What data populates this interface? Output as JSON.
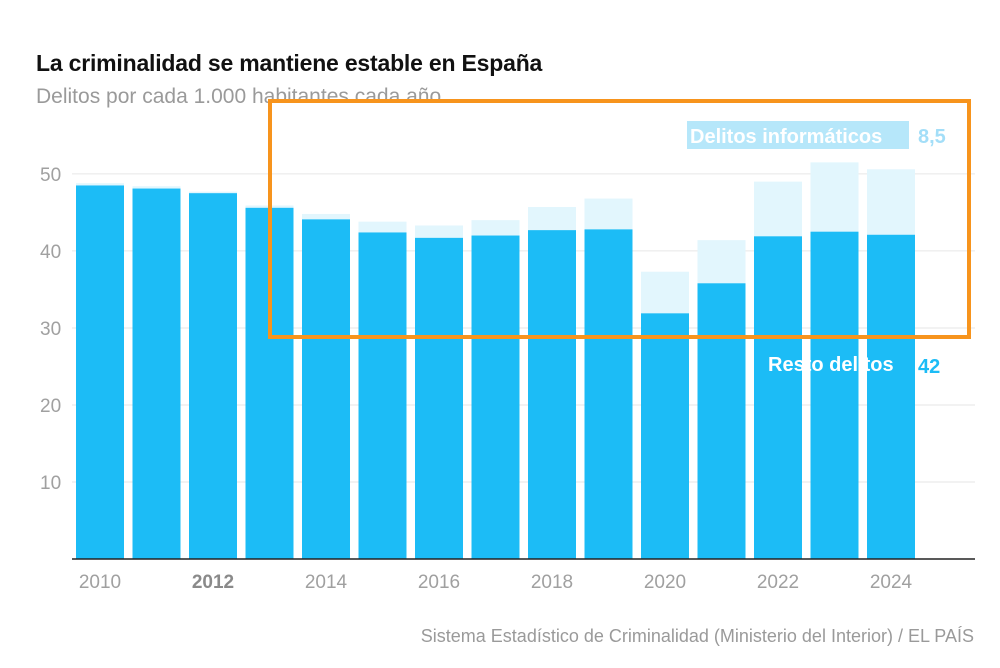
{
  "chart_data": {
    "type": "bar",
    "stacked": true,
    "title": "La criminalidad se mantiene estable en España",
    "subtitle": "Delitos por cada 1.000 habitantes cada año",
    "source": "Sistema Estadístico de Criminalidad (Ministerio del Interior) / EL PAÍS",
    "categories": [
      2010,
      2011,
      2012,
      2013,
      2014,
      2015,
      2016,
      2017,
      2018,
      2019,
      2020,
      2021,
      2022,
      2023,
      2024
    ],
    "x_tick_labels": [
      {
        "year": 2010,
        "label": "2010",
        "bold": false
      },
      {
        "year": 2012,
        "label": "2012",
        "bold": true
      },
      {
        "year": 2014,
        "label": "2014",
        "bold": false
      },
      {
        "year": 2016,
        "label": "2016",
        "bold": false
      },
      {
        "year": 2018,
        "label": "2018",
        "bold": false
      },
      {
        "year": 2020,
        "label": "2020",
        "bold": false
      },
      {
        "year": 2022,
        "label": "2022",
        "bold": false
      },
      {
        "year": 2024,
        "label": "2024",
        "bold": false
      }
    ],
    "y_ticks": [
      {
        "value": 10,
        "label": "10"
      },
      {
        "value": 20,
        "label": "20"
      },
      {
        "value": 30,
        "label": "30"
      },
      {
        "value": 40,
        "label": "40"
      },
      {
        "value": 50,
        "label": "50"
      }
    ],
    "ylim": [
      0,
      57
    ],
    "grid": true,
    "series": [
      {
        "name": "Resto delitos",
        "color": "#1cbcf6",
        "end_label": "42",
        "values": [
          48.5,
          48.1,
          47.5,
          45.6,
          44.1,
          42.4,
          41.7,
          42.0,
          42.7,
          42.8,
          31.9,
          35.8,
          41.9,
          42.5,
          42.1
        ]
      },
      {
        "name": "Delitos informáticos",
        "color": "#e2f6fd",
        "end_label": "8,5",
        "values": [
          0.3,
          0.3,
          0.2,
          0.3,
          0.7,
          1.4,
          1.6,
          2.0,
          3.0,
          4.0,
          5.4,
          5.6,
          7.1,
          9.0,
          8.5
        ]
      }
    ],
    "label_colors": {
      "informaticos_text": "#ffffff",
      "informaticos_bg": "#b6e7fa",
      "informaticos_value": "#a3def8",
      "resto_value": "#1cbcf6"
    },
    "highlight_color": "#f7941d"
  }
}
